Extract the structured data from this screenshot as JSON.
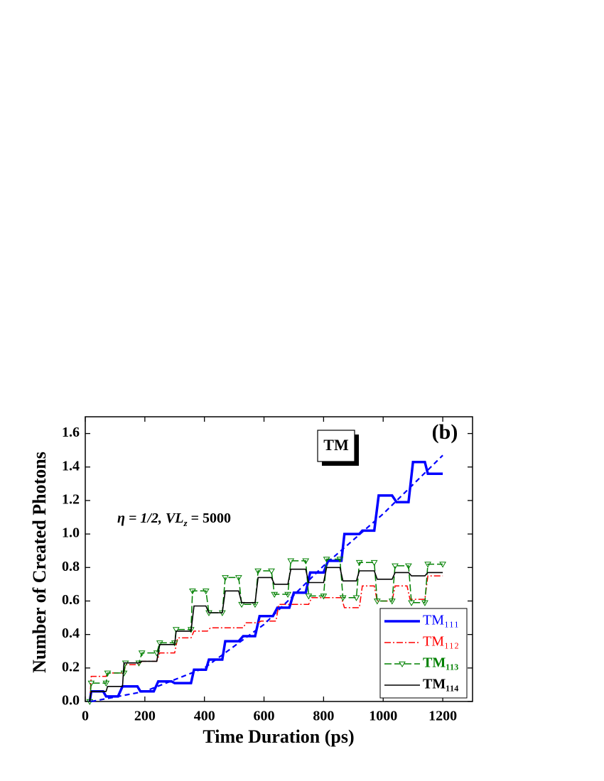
{
  "chart_data": {
    "type": "line",
    "xlabel": "Time Duration (ps)",
    "ylabel": "Number of Created Photons",
    "panel_label": "(b)",
    "box_label": "TM",
    "annotation": [
      "η = 1/2, ",
      "VL",
      "z",
      " = 5000"
    ],
    "xlim": [
      0,
      1300
    ],
    "ylim": [
      0,
      1.7
    ],
    "xticks": [
      0,
      200,
      400,
      600,
      800,
      1000,
      1200
    ],
    "yticks": [
      {
        "value": 0,
        "label": "0.0"
      },
      {
        "value": 0.2,
        "label": "0.2"
      },
      {
        "value": 0.4,
        "label": "0.4"
      },
      {
        "value": 0.6,
        "label": "0.6"
      },
      {
        "value": 0.8,
        "label": "0.8"
      },
      {
        "value": 1.0,
        "label": "1.0"
      },
      {
        "value": 1.2,
        "label": "1.2"
      },
      {
        "value": 1.4,
        "label": "1.4"
      },
      {
        "value": 1.6,
        "label": "1.6"
      }
    ],
    "legend": "lower right",
    "series": [
      {
        "name": "TM₁₁₁",
        "color": "#0000ff",
        "x": [
          15,
          20,
          60,
          70,
          110,
          125,
          175,
          185,
          230,
          245,
          290,
          300,
          355,
          365,
          405,
          415,
          460,
          470,
          515,
          530,
          570,
          585,
          630,
          645,
          685,
          700,
          740,
          755,
          800,
          815,
          860,
          870,
          920,
          930,
          970,
          985,
          1030,
          1045,
          1085,
          1100,
          1140,
          1150,
          1200
        ],
        "values": [
          0,
          0.06,
          0.06,
          0.03,
          0.03,
          0.09,
          0.09,
          0.06,
          0.06,
          0.12,
          0.12,
          0.11,
          0.11,
          0.19,
          0.19,
          0.25,
          0.25,
          0.36,
          0.36,
          0.39,
          0.39,
          0.51,
          0.51,
          0.56,
          0.56,
          0.65,
          0.65,
          0.77,
          0.77,
          0.84,
          0.84,
          1.0,
          1.0,
          1.02,
          1.02,
          1.23,
          1.23,
          1.19,
          1.19,
          1.43,
          1.43,
          1.36,
          1.36
        ]
      },
      {
        "name": "TM₁₁₂",
        "color": "#ff0000",
        "x": [
          15,
          20,
          70,
          75,
          130,
          135,
          180,
          190,
          240,
          250,
          300,
          310,
          355,
          365,
          410,
          420,
          530,
          540,
          580,
          590,
          640,
          650,
          750,
          760,
          860,
          870,
          920,
          930,
          970,
          980,
          1030,
          1040,
          1080,
          1090,
          1140,
          1150,
          1200
        ],
        "values": [
          0,
          0.15,
          0.15,
          0.17,
          0.17,
          0.22,
          0.22,
          0.24,
          0.24,
          0.29,
          0.29,
          0.38,
          0.38,
          0.42,
          0.42,
          0.44,
          0.44,
          0.47,
          0.47,
          0.48,
          0.48,
          0.58,
          0.58,
          0.62,
          0.62,
          0.56,
          0.56,
          0.69,
          0.69,
          0.6,
          0.6,
          0.69,
          0.69,
          0.61,
          0.61,
          0.75,
          0.75
        ]
      },
      {
        "name": "TM₁₁₃",
        "color": "#008000",
        "x": [
          15,
          20,
          70,
          75,
          130,
          135,
          180,
          190,
          240,
          250,
          300,
          305,
          355,
          360,
          405,
          415,
          460,
          470,
          515,
          525,
          570,
          580,
          625,
          635,
          680,
          690,
          740,
          750,
          800,
          810,
          855,
          865,
          910,
          920,
          970,
          980,
          1030,
          1040,
          1085,
          1095,
          1140,
          1150,
          1200
        ],
        "values": [
          0,
          0.11,
          0.11,
          0.17,
          0.17,
          0.23,
          0.23,
          0.29,
          0.29,
          0.35,
          0.35,
          0.43,
          0.43,
          0.66,
          0.66,
          0.53,
          0.53,
          0.74,
          0.74,
          0.58,
          0.58,
          0.78,
          0.78,
          0.64,
          0.64,
          0.84,
          0.84,
          0.63,
          0.63,
          0.85,
          0.85,
          0.62,
          0.62,
          0.83,
          0.83,
          0.6,
          0.6,
          0.81,
          0.81,
          0.59,
          0.59,
          0.82,
          0.82
        ]
      },
      {
        "name": "TM₁₁₄",
        "color": "#000000",
        "x": [
          15,
          20,
          70,
          75,
          125,
          130,
          180,
          190,
          240,
          250,
          300,
          305,
          355,
          365,
          405,
          415,
          460,
          470,
          515,
          525,
          570,
          580,
          625,
          635,
          680,
          690,
          740,
          750,
          800,
          810,
          855,
          865,
          910,
          920,
          970,
          980,
          1030,
          1040,
          1085,
          1095,
          1140,
          1150,
          1200
        ],
        "values": [
          0,
          0.06,
          0.06,
          0.09,
          0.09,
          0.23,
          0.23,
          0.24,
          0.24,
          0.34,
          0.34,
          0.42,
          0.42,
          0.57,
          0.57,
          0.53,
          0.53,
          0.66,
          0.66,
          0.59,
          0.59,
          0.74,
          0.74,
          0.7,
          0.7,
          0.79,
          0.79,
          0.71,
          0.71,
          0.8,
          0.8,
          0.72,
          0.72,
          0.78,
          0.78,
          0.73,
          0.73,
          0.77,
          0.77,
          0.75,
          0.75,
          0.77,
          0.77
        ]
      }
    ],
    "fit": {
      "color": "#0000ff",
      "x": [
        20,
        200,
        400,
        600,
        800,
        1000,
        1200
      ],
      "values": [
        0,
        0.06,
        0.2,
        0.46,
        0.81,
        1.12,
        1.47
      ]
    }
  }
}
